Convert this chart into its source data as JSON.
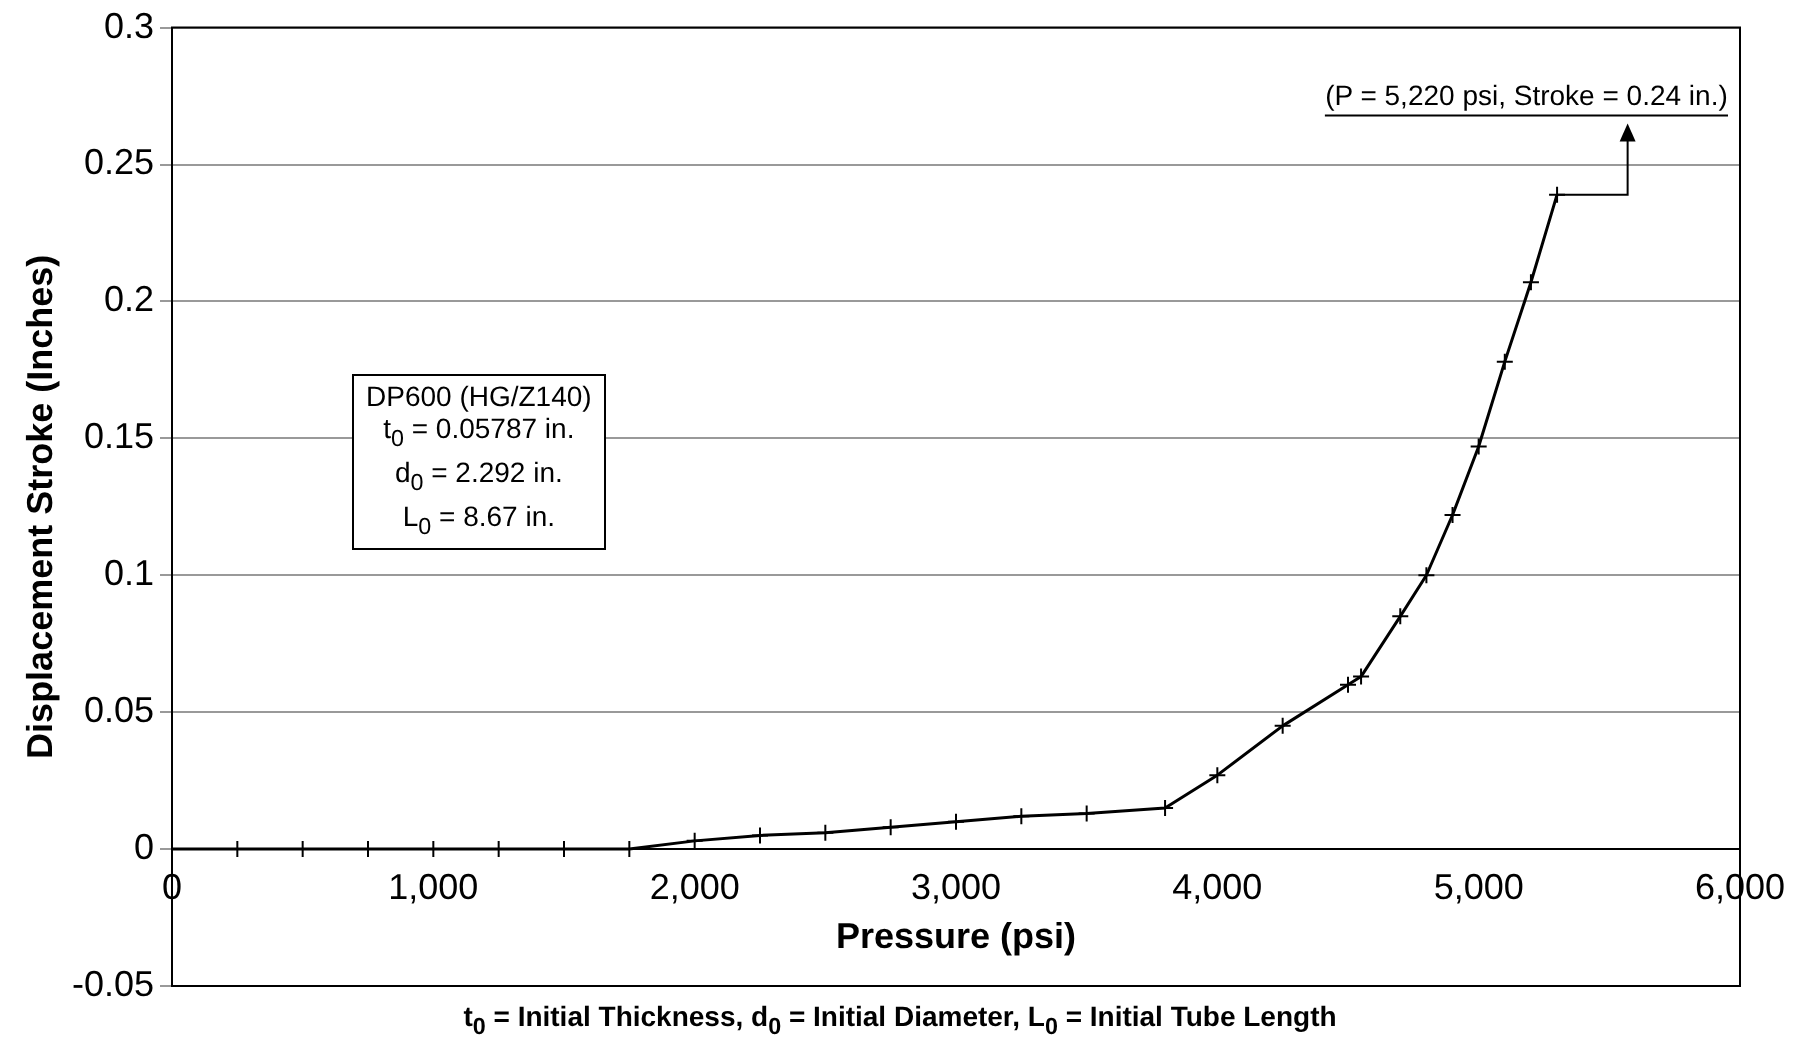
{
  "chart_data": {
    "type": "line",
    "xlabel": "Pressure (psi)",
    "ylabel": "Displacement Stroke (Inches)",
    "x": [
      0,
      250,
      500,
      750,
      1000,
      1250,
      1500,
      1750,
      2000,
      2250,
      2500,
      2750,
      3000,
      3250,
      3500,
      3800,
      4000,
      4250,
      4500,
      4550,
      4700,
      4800,
      4900,
      5000,
      5100,
      5200,
      5300
    ],
    "series": [
      {
        "color": "#000000",
        "values": [
          0,
          0,
          0,
          0,
          0,
          0,
          0,
          0,
          0.003,
          0.005,
          0.006,
          0.008,
          0.01,
          0.012,
          0.013,
          0.015,
          0.027,
          0.045,
          0.06,
          0.063,
          0.085,
          0.1,
          0.122,
          0.147,
          0.178,
          0.207,
          0.239
        ]
      }
    ],
    "xlim": [
      0,
      6000
    ],
    "xticks": [
      {
        "value": 0,
        "label": "0"
      },
      {
        "value": 1000,
        "label": "1,000"
      },
      {
        "value": 2000,
        "label": "2,000"
      },
      {
        "value": 3000,
        "label": "3,000"
      },
      {
        "value": 4000,
        "label": "4,000"
      },
      {
        "value": 5000,
        "label": "5,000"
      },
      {
        "value": 6000,
        "label": "6,000"
      }
    ],
    "ylim": [
      -0.05,
      0.3
    ],
    "yticks": [
      -0.05,
      0,
      0.05,
      0.1,
      0.15,
      0.2,
      0.25,
      0.3
    ],
    "grid": "y",
    "legend": false,
    "marker": "cross",
    "line_style": "solid",
    "annotations": [
      "(P = 5,220 psi, Stroke = 0.24 in.)",
      "DP600 (HG/Z140)\nt$_{0}$ = 0.05787 in.\nd$_{0}$ = 2.292 in.\nL$_{0}$ = 8.67 in.",
      "t$_{0}$ = Initial Thickness, d$_{0}$ = Initial Diameter, L$_{0}$ = Initial Tube Length"
    ]
  }
}
